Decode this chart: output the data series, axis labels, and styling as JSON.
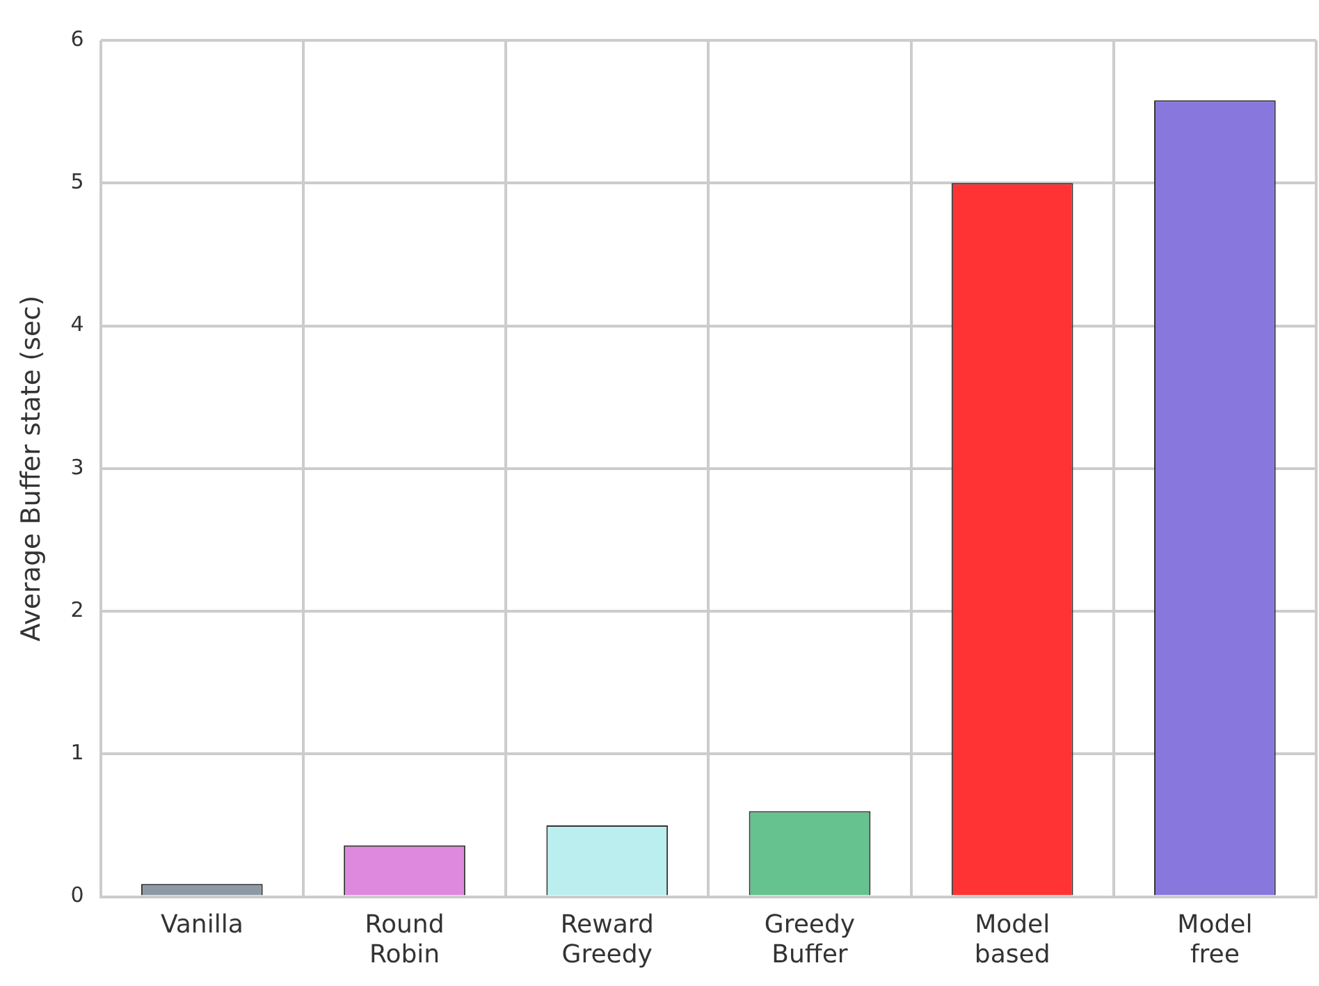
{
  "chart_data": {
    "type": "bar",
    "ylabel": "Average Buffer state (sec)",
    "categories": [
      "Vanilla",
      "Round\nRobin",
      "Reward\nGreedy",
      "Greedy\nBuffer",
      "Model\nbased",
      "Model\nfree"
    ],
    "values": [
      0.09,
      0.36,
      0.5,
      0.6,
      5.0,
      5.58
    ],
    "colors": [
      "#8d9aa6",
      "#de88de",
      "#bbeeee",
      "#66c28e",
      "#ff3333",
      "#8877dd"
    ],
    "ylim": [
      0,
      6
    ],
    "yticks": [
      0,
      1,
      2,
      3,
      4,
      5,
      6
    ],
    "grid": true
  }
}
